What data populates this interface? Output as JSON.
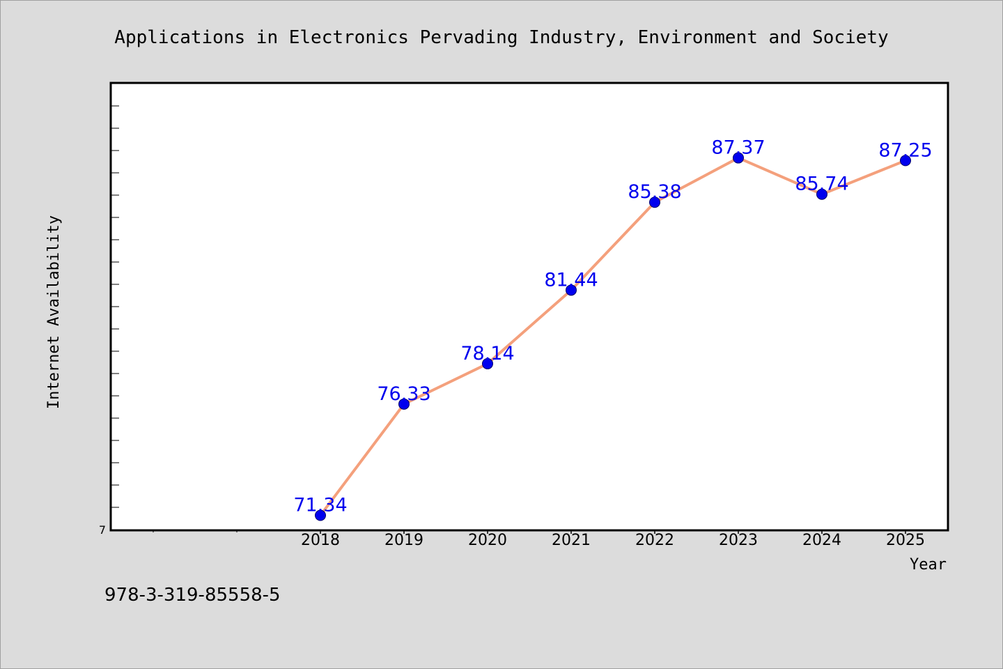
{
  "chart_data": {
    "type": "line",
    "title": "Applications in Electronics Pervading Industry, Environment and Society",
    "xlabel": "Year",
    "ylabel": "Internet Availability",
    "categories": [
      "2018",
      "2019",
      "2020",
      "2021",
      "2022",
      "2023",
      "2024",
      "2025"
    ],
    "series": [
      {
        "values": [
          71.34,
          76.33,
          78.14,
          81.44,
          85.38,
          87.37,
          85.74,
          87.25
        ],
        "labels": [
          "71.34",
          "76.33",
          "78.14",
          "81.44",
          "85.38",
          "87.37",
          "85.74",
          "87.25"
        ]
      }
    ],
    "y_tick_label": "7",
    "ylim": [
      70.7,
      90.7
    ],
    "grid": false,
    "line_color": "#f4a07c",
    "marker_color": "#0000ee",
    "label_color": "#0000ee"
  },
  "footer_text": "978-3-319-85558-5"
}
